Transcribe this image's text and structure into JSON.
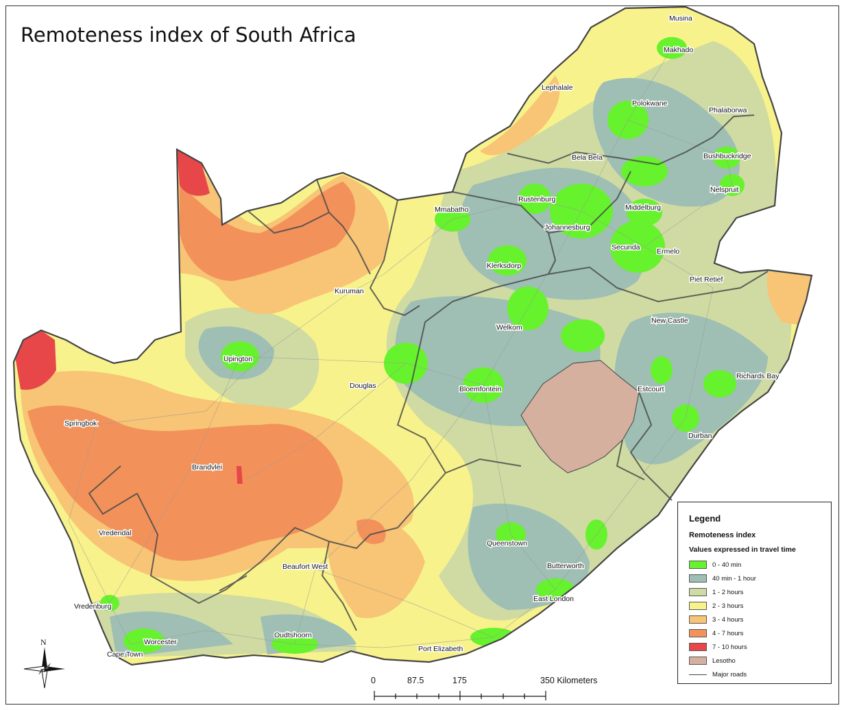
{
  "title": "Remoteness index of South Africa",
  "legend": {
    "heading": "Legend",
    "title": "Remoteness index",
    "subtitle": "Values expressed in travel time",
    "classes": [
      {
        "label": "0 - 40 min",
        "color": "#66f22c"
      },
      {
        "label": "40 min - 1 hour",
        "color": "#9fbfb4"
      },
      {
        "label": "1 - 2 hours",
        "color": "#cfdba2"
      },
      {
        "label": "2 - 3 hours",
        "color": "#f8f28c"
      },
      {
        "label": "3 - 4 hours",
        "color": "#f8c475"
      },
      {
        "label": "4 - 7 hours",
        "color": "#f2925a"
      },
      {
        "label": "7 - 10 hours",
        "color": "#e8474a"
      },
      {
        "label": "Lesotho",
        "color": "#d6b09e"
      }
    ],
    "roads_label": "Major roads"
  },
  "scale": {
    "ticks": [
      "0",
      "87.5",
      "175",
      "350 Kilometers"
    ]
  },
  "north_label": "N",
  "cities": [
    "Musina",
    "Makhado",
    "Lephalale",
    "Polokwane",
    "Phalaborwa",
    "Bela Bela",
    "Bushbuckridge",
    "Nelspruit",
    "Rustenburg",
    "Mmabatho",
    "Middelburg",
    "Johannesburg",
    "Secunda",
    "Ermelo",
    "Klerksdorp",
    "Piet Retief",
    "Kuruman",
    "New Castle",
    "Welkom",
    "Upington",
    "Richards Bay",
    "Douglas",
    "Bloemfontein",
    "Estcourt",
    "Springbok",
    "Durban",
    "Brandvlei",
    "Vredendal",
    "Queenstown",
    "Beaufort West",
    "Butterworth",
    "East London",
    "Vredenburg",
    "Oudtshoorn",
    "Worcester",
    "Cape Town",
    "Port Elizabeth"
  ]
}
